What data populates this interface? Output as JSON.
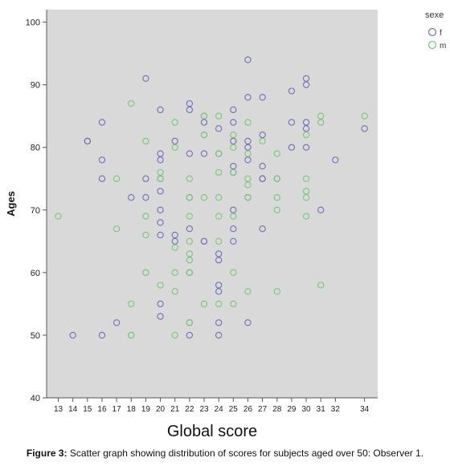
{
  "chart_data": {
    "type": "scatter",
    "xlabel": "Global score",
    "ylabel": "Ages",
    "legend_title": "sexe",
    "legend_position": "top-right",
    "xticks": [
      13,
      14,
      15,
      16,
      17,
      18,
      19,
      20,
      21,
      22,
      23,
      24,
      25,
      26,
      27,
      28,
      29,
      30,
      31,
      32,
      34
    ],
    "yticks": [
      40,
      50,
      60,
      70,
      80,
      90,
      100
    ],
    "xlim": [
      12.2,
      34.9
    ],
    "ylim": [
      40,
      102
    ],
    "grid": false,
    "background": "#d9d9d9",
    "series": [
      {
        "name": "f",
        "color": "#6e6eb8",
        "points": [
          [
            14,
            50
          ],
          [
            15,
            81
          ],
          [
            15,
            81
          ],
          [
            16,
            84
          ],
          [
            16,
            78
          ],
          [
            16,
            75
          ],
          [
            16,
            50
          ],
          [
            17,
            52
          ],
          [
            18,
            72
          ],
          [
            19,
            91
          ],
          [
            19,
            75
          ],
          [
            19,
            72
          ],
          [
            20,
            86
          ],
          [
            20,
            79
          ],
          [
            20,
            78
          ],
          [
            20,
            75
          ],
          [
            20,
            73
          ],
          [
            20,
            70
          ],
          [
            20,
            68
          ],
          [
            20,
            66
          ],
          [
            20,
            55
          ],
          [
            20,
            53
          ],
          [
            21,
            81
          ],
          [
            21,
            66
          ],
          [
            21,
            65
          ],
          [
            22,
            87
          ],
          [
            22,
            86
          ],
          [
            22,
            79
          ],
          [
            22,
            72
          ],
          [
            22,
            67
          ],
          [
            22,
            60
          ],
          [
            22,
            52
          ],
          [
            22,
            50
          ],
          [
            23,
            85
          ],
          [
            23,
            84
          ],
          [
            23,
            79
          ],
          [
            23,
            65
          ],
          [
            23,
            65
          ],
          [
            24,
            83
          ],
          [
            24,
            79
          ],
          [
            24,
            63
          ],
          [
            24,
            62
          ],
          [
            24,
            58
          ],
          [
            24,
            57
          ],
          [
            24,
            52
          ],
          [
            24,
            50
          ],
          [
            25,
            86
          ],
          [
            25,
            84
          ],
          [
            25,
            81
          ],
          [
            25,
            77
          ],
          [
            25,
            76
          ],
          [
            25,
            70
          ],
          [
            25,
            67
          ],
          [
            25,
            65
          ],
          [
            26,
            94
          ],
          [
            26,
            88
          ],
          [
            26,
            81
          ],
          [
            26,
            80
          ],
          [
            26,
            78
          ],
          [
            26,
            72
          ],
          [
            26,
            52
          ],
          [
            27,
            88
          ],
          [
            27,
            82
          ],
          [
            27,
            77
          ],
          [
            27,
            75
          ],
          [
            27,
            75
          ],
          [
            27,
            67
          ],
          [
            28,
            75
          ],
          [
            29,
            89
          ],
          [
            29,
            84
          ],
          [
            29,
            80
          ],
          [
            30,
            91
          ],
          [
            30,
            90
          ],
          [
            30,
            84
          ],
          [
            30,
            83
          ],
          [
            30,
            80
          ],
          [
            31,
            70
          ],
          [
            32,
            78
          ],
          [
            34,
            83
          ]
        ]
      },
      {
        "name": "m",
        "color": "#77c777",
        "points": [
          [
            13,
            69
          ],
          [
            17,
            75
          ],
          [
            17,
            67
          ],
          [
            18,
            87
          ],
          [
            18,
            55
          ],
          [
            18,
            50
          ],
          [
            18,
            50
          ],
          [
            19,
            81
          ],
          [
            19,
            69
          ],
          [
            19,
            66
          ],
          [
            19,
            60
          ],
          [
            19,
            60
          ],
          [
            20,
            76
          ],
          [
            20,
            75
          ],
          [
            20,
            58
          ],
          [
            21,
            84
          ],
          [
            21,
            80
          ],
          [
            21,
            64
          ],
          [
            21,
            60
          ],
          [
            21,
            57
          ],
          [
            21,
            50
          ],
          [
            22,
            75
          ],
          [
            22,
            72
          ],
          [
            22,
            69
          ],
          [
            22,
            65
          ],
          [
            22,
            63
          ],
          [
            22,
            62
          ],
          [
            22,
            60
          ],
          [
            22,
            60
          ],
          [
            22,
            52
          ],
          [
            22,
            52
          ],
          [
            23,
            85
          ],
          [
            23,
            82
          ],
          [
            23,
            82
          ],
          [
            23,
            72
          ],
          [
            23,
            55
          ],
          [
            24,
            85
          ],
          [
            24,
            79
          ],
          [
            24,
            76
          ],
          [
            24,
            72
          ],
          [
            24,
            69
          ],
          [
            24,
            65
          ],
          [
            24,
            55
          ],
          [
            25,
            82
          ],
          [
            25,
            80
          ],
          [
            25,
            76
          ],
          [
            25,
            69
          ],
          [
            25,
            60
          ],
          [
            25,
            55
          ],
          [
            26,
            84
          ],
          [
            26,
            79
          ],
          [
            26,
            75
          ],
          [
            26,
            74
          ],
          [
            26,
            72
          ],
          [
            26,
            57
          ],
          [
            27,
            81
          ],
          [
            28,
            79
          ],
          [
            28,
            75
          ],
          [
            28,
            72
          ],
          [
            28,
            70
          ],
          [
            28,
            57
          ],
          [
            30,
            82
          ],
          [
            30,
            75
          ],
          [
            30,
            73
          ],
          [
            30,
            72
          ],
          [
            30,
            69
          ],
          [
            31,
            85
          ],
          [
            31,
            84
          ],
          [
            31,
            58
          ],
          [
            34,
            85
          ]
        ]
      }
    ]
  },
  "caption": {
    "label": "Figure 3:",
    "text": " Scatter graph showing distribution of scores for subjects aged over 50: Observer 1."
  }
}
